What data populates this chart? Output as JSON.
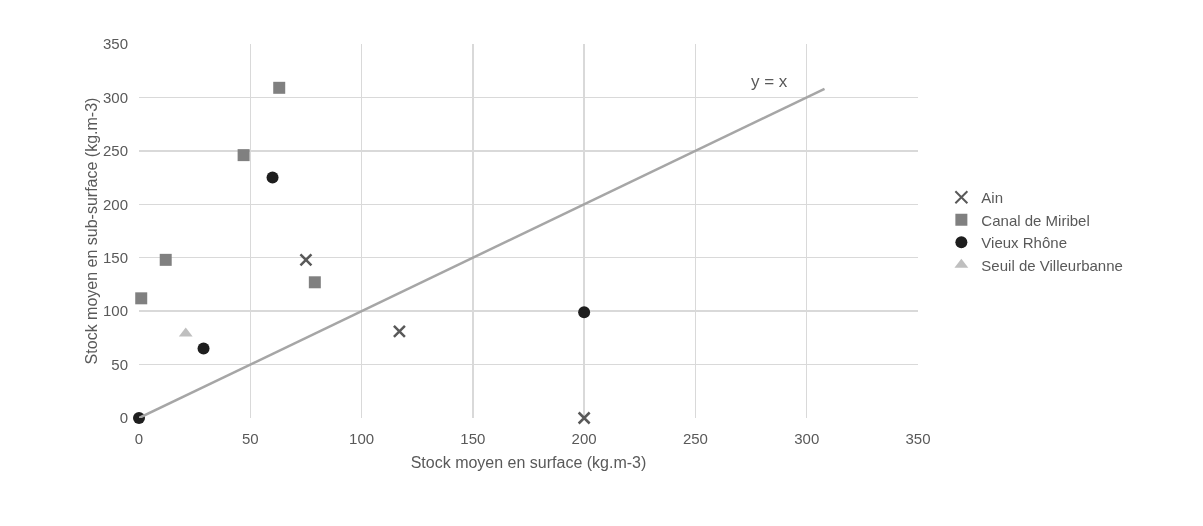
{
  "chart_data": {
    "type": "scatter",
    "xlabel": "Stock moyen en surface (kg.m-3)",
    "ylabel": "Stock moyen en sub-surface (kg.m-3)",
    "xlim": [
      0,
      350
    ],
    "xticks": [
      0,
      50,
      100,
      150,
      200,
      250,
      300,
      350
    ],
    "ylim": [
      0,
      350
    ],
    "yticks": [
      0,
      50,
      100,
      150,
      200,
      250,
      300,
      350
    ],
    "grid": true,
    "legend": "right",
    "series": [
      {
        "name": "Ain",
        "marker": "cross",
        "color": "#595959",
        "x": [
          75,
          117,
          200
        ],
        "values": [
          148,
          81,
          0
        ]
      },
      {
        "name": "Canal de Miribel",
        "marker": "square",
        "color": "#808080",
        "x": [
          1,
          12,
          47,
          63,
          79
        ],
        "values": [
          112,
          148,
          246,
          309,
          127
        ]
      },
      {
        "name": "Vieux Rhône",
        "marker": "circle",
        "color": "#1e1e1e",
        "x": [
          0,
          29,
          60,
          200
        ],
        "values": [
          0,
          65,
          225,
          99
        ]
      },
      {
        "name": "Seuil de Villeurbanne",
        "marker": "triangle",
        "color": "#bfbfbf",
        "x": [
          21
        ],
        "values": [
          79
        ]
      },
      {
        "type": "line",
        "marker": "none",
        "color": "#a6a6a6",
        "x": [
          0,
          308
        ],
        "values": [
          0,
          308
        ]
      }
    ],
    "annotations": [
      "y = x"
    ]
  }
}
